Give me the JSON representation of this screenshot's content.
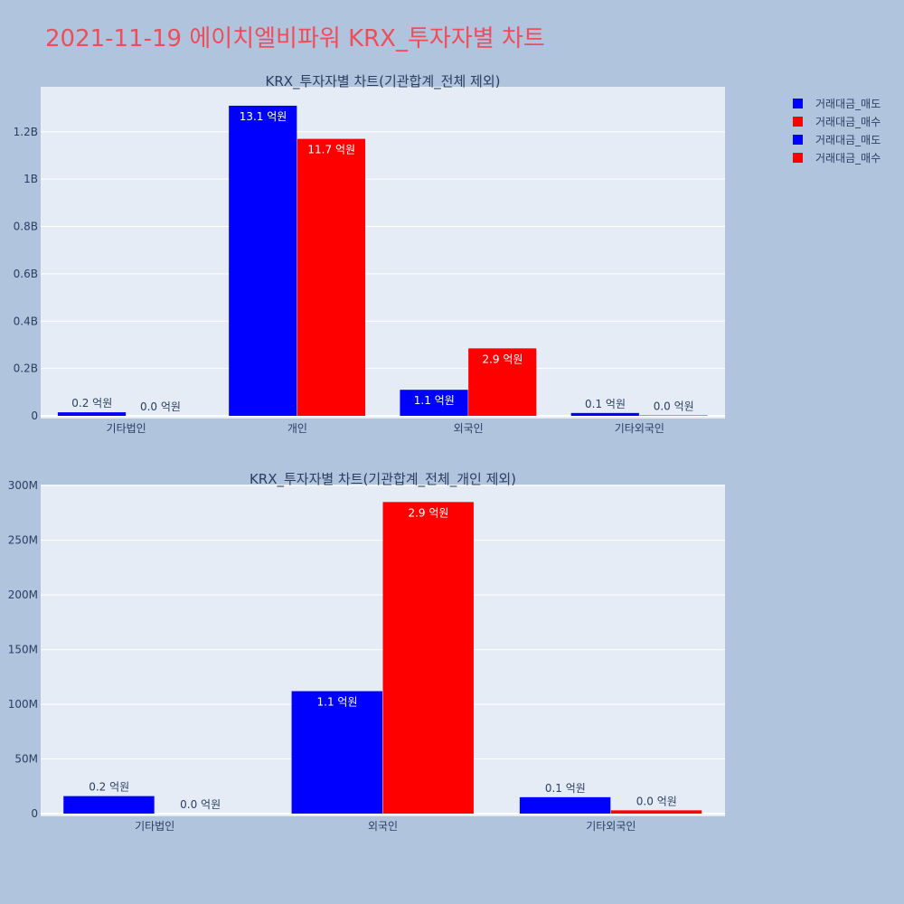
{
  "page_title": "2021-11-19 에이치엘비파워 KRX_투자자별 차트",
  "colors": {
    "background": "#b0c4de",
    "plot_bg": "#e5ecf6",
    "sell": "#0000ff",
    "buy": "#ff0000",
    "title": "#ef4d5a"
  },
  "legend": [
    "거래대금_매도",
    "거래대금_매수",
    "거래대금_매도",
    "거래대금_매수"
  ],
  "chart_data": [
    {
      "type": "bar",
      "title": "KRX_투자자별 차트(기관합계_전체 제외)",
      "categories": [
        "기타법인",
        "개인",
        "외국인",
        "기타외국인"
      ],
      "series": [
        {
          "name": "거래대금_매도",
          "values": [
            15000000,
            1310000000,
            110000000,
            12000000
          ],
          "labels": [
            "0.2 억원",
            "13.1 억원",
            "1.1 억원",
            "0.1 억원"
          ]
        },
        {
          "name": "거래대금_매수",
          "values": [
            0,
            1170000000,
            285000000,
            2000000
          ],
          "labels": [
            "0.0 억원",
            "11.7 억원",
            "2.9 억원",
            "0.0 억원"
          ]
        }
      ],
      "yticks": [
        0,
        200000000,
        400000000,
        600000000,
        800000000,
        1000000000,
        1200000000
      ],
      "ytick_labels": [
        "0",
        "0.2B",
        "0.4B",
        "0.6B",
        "0.8B",
        "1B",
        "1.2B"
      ],
      "ylim": [
        0,
        1390000000
      ]
    },
    {
      "type": "bar",
      "title": "KRX_투자자별 차트(기관합계_전체_개인 제외)",
      "categories": [
        "기타법인",
        "외국인",
        "기타외국인"
      ],
      "series": [
        {
          "name": "거래대금_매도",
          "values": [
            16000000,
            112000000,
            15000000
          ],
          "labels": [
            "0.2 억원",
            "1.1 억원",
            "0.1 억원"
          ]
        },
        {
          "name": "거래대금_매수",
          "values": [
            0,
            285000000,
            3000000
          ],
          "labels": [
            "0.0 억원",
            "2.9 억원",
            "0.0 억원"
          ]
        }
      ],
      "yticks": [
        0,
        50000000,
        100000000,
        150000000,
        200000000,
        250000000,
        300000000
      ],
      "ytick_labels": [
        "0",
        "50M",
        "100M",
        "150M",
        "200M",
        "250M",
        "300M"
      ],
      "ylim": [
        0,
        301000000
      ]
    }
  ]
}
